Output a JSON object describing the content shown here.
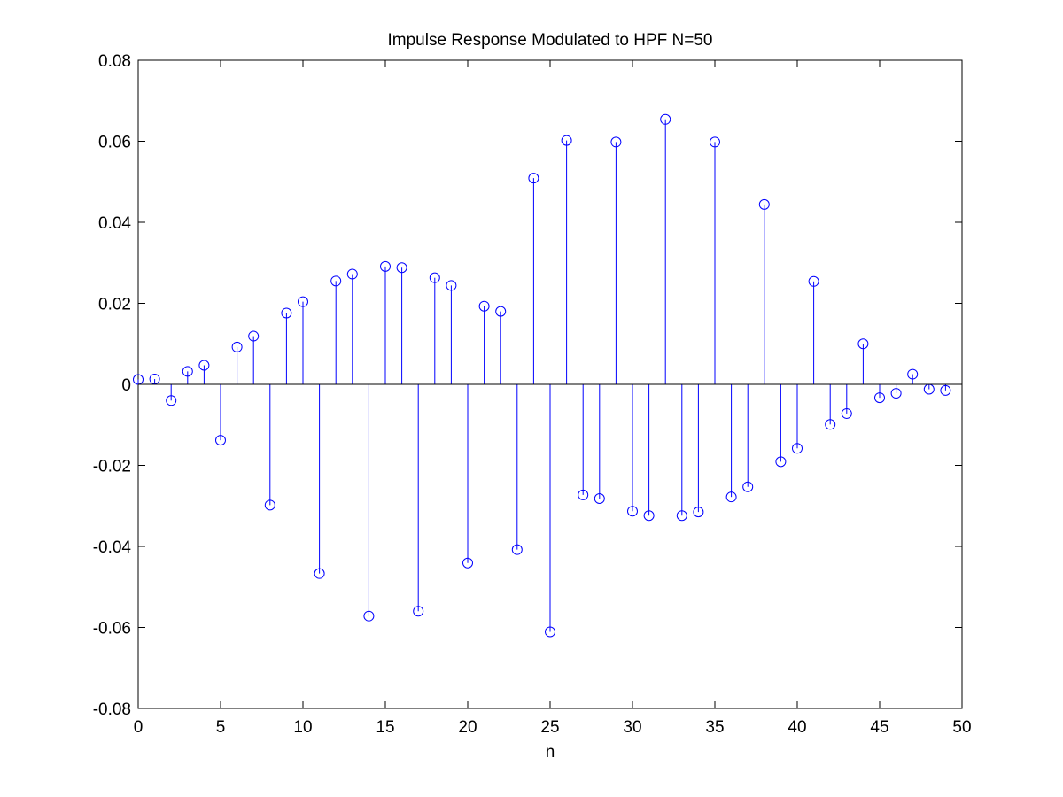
{
  "chart_data": {
    "type": "stem",
    "title": "Impulse Response Modulated to HPF N=50",
    "xlabel": "n",
    "ylabel": "",
    "xlim": [
      0,
      50
    ],
    "ylim": [
      -0.08,
      0.08
    ],
    "xticks": [
      0,
      5,
      10,
      15,
      20,
      25,
      30,
      35,
      40,
      45,
      50
    ],
    "xtick_labels": [
      "0",
      "5",
      "10",
      "15",
      "20",
      "25",
      "30",
      "35",
      "40",
      "45",
      "50"
    ],
    "yticks": [
      -0.08,
      -0.06,
      -0.04,
      -0.02,
      0,
      0.02,
      0.04,
      0.06,
      0.08
    ],
    "ytick_labels": [
      "-0.08",
      "-0.06",
      "-0.04",
      "-0.02",
      "0",
      "0.02",
      "0.04",
      "0.06",
      "0.08"
    ],
    "grid": false,
    "marker": "circle",
    "color": "#0000ff",
    "baseline": 0,
    "x": [
      0,
      1,
      2,
      3,
      4,
      5,
      6,
      7,
      8,
      9,
      10,
      11,
      12,
      13,
      14,
      15,
      16,
      17,
      18,
      19,
      20,
      21,
      22,
      23,
      24,
      25,
      26,
      27,
      28,
      29,
      30,
      31,
      32,
      33,
      34,
      35,
      36,
      37,
      38,
      39,
      40,
      41,
      42,
      43,
      44,
      45,
      46,
      47,
      48,
      49
    ],
    "values": [
      0.0012,
      0.0013,
      -0.004,
      0.0032,
      0.0047,
      -0.0138,
      0.0092,
      0.0119,
      -0.0298,
      0.0176,
      0.0204,
      -0.0467,
      0.0255,
      0.0272,
      -0.0572,
      0.0291,
      0.0288,
      -0.056,
      0.0263,
      0.0244,
      -0.0441,
      0.0193,
      0.018,
      -0.0408,
      0.0509,
      -0.0611,
      0.0602,
      -0.0273,
      -0.0282,
      0.0598,
      -0.0313,
      -0.0324,
      0.0654,
      -0.0324,
      -0.0315,
      0.0598,
      -0.0278,
      -0.0253,
      0.0444,
      -0.0191,
      -0.0158,
      0.0254,
      -0.0099,
      -0.0072,
      0.01,
      -0.0033,
      -0.0022,
      0.0025,
      -0.0012,
      -0.0015
    ]
  }
}
